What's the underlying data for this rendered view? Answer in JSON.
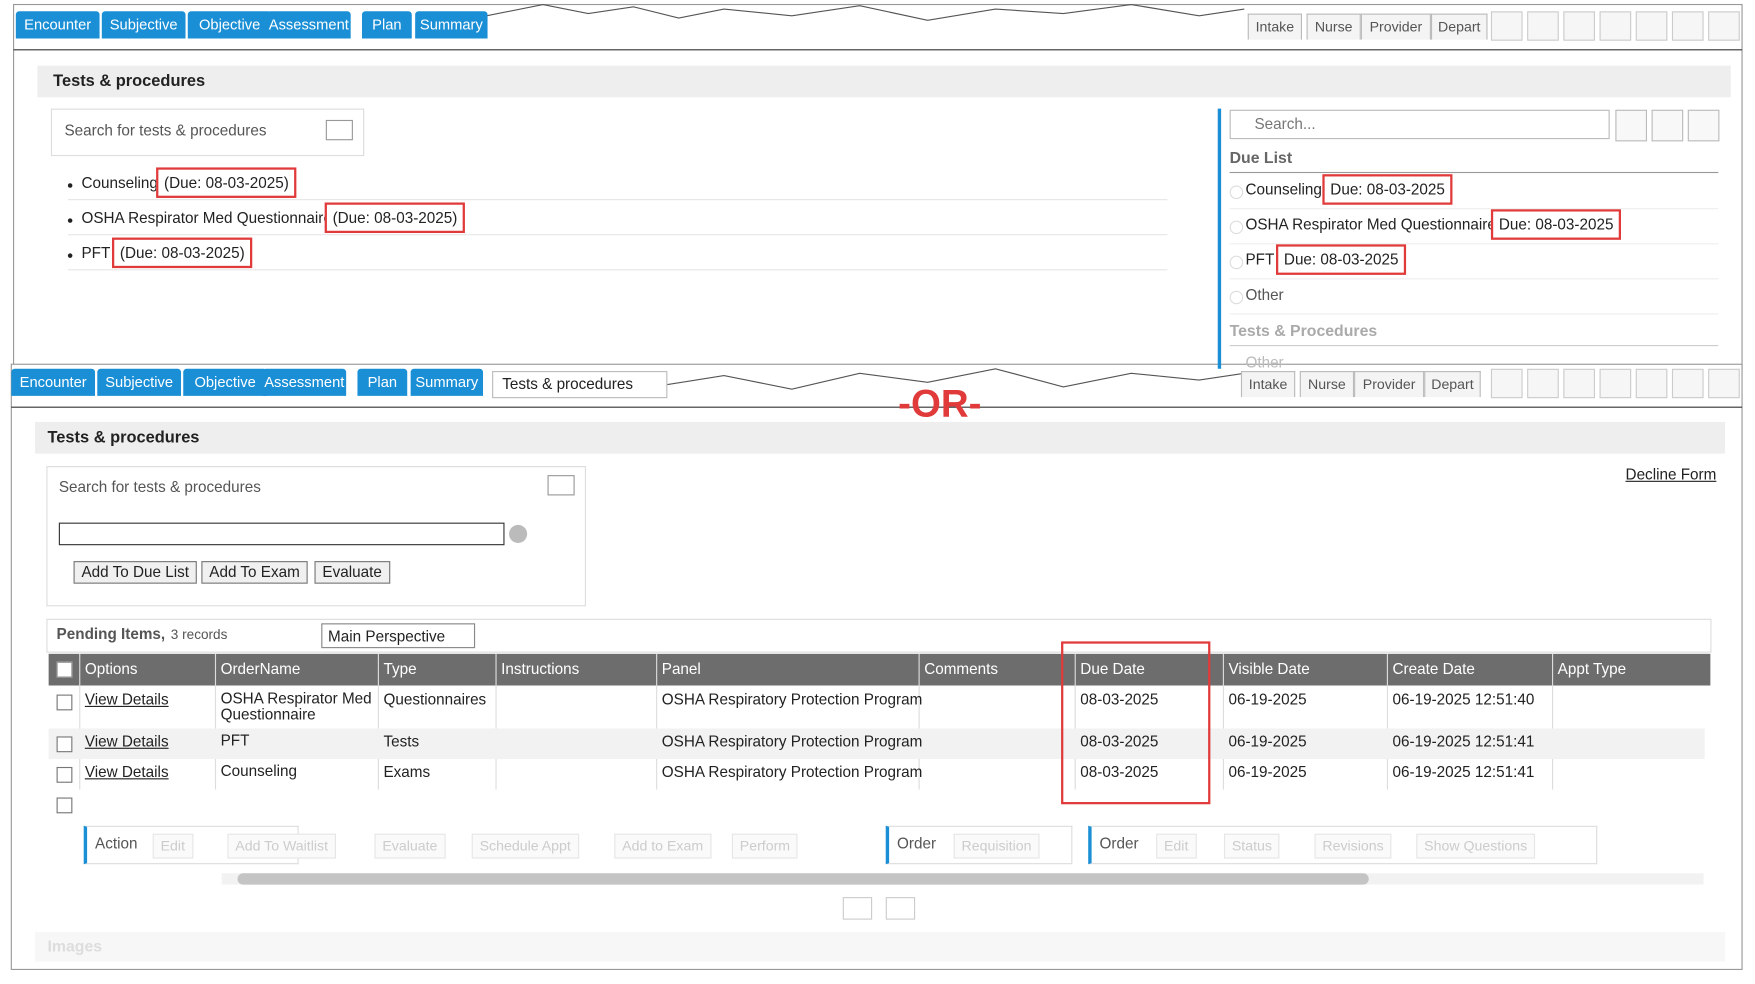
{
  "top": {
    "tabs": [
      "Encounter",
      "Subjective",
      "Objective",
      "Assessment",
      "Plan",
      "Summary"
    ],
    "right_tabs": [
      "Intake",
      "Nurse",
      "Provider",
      "Depart"
    ],
    "panel_title": "Tests & procedures",
    "search_label": "Search for tests & procedures",
    "items": [
      {
        "name": "Counseling",
        "due": "(Due: 08-03-2025)"
      },
      {
        "name": "OSHA Respirator Med Questionnaire",
        "due": "(Due: 08-03-2025)"
      },
      {
        "name": "PFT",
        "due": "(Due: 08-03-2025)"
      }
    ],
    "side_search": "Search...",
    "due_list_title": "Due List",
    "due_list": [
      {
        "name": "Counseling",
        "due": "Due: 08-03-2025"
      },
      {
        "name": "OSHA Respirator Med Questionnaire",
        "due": "Due: 08-03-2025"
      },
      {
        "name": "PFT",
        "due": "Due: 08-03-2025"
      },
      {
        "name": "Other"
      }
    ],
    "section_title": "Tests & Procedures",
    "section_items": [
      "Other"
    ]
  },
  "separator": "-OR-",
  "bottom": {
    "tabs": [
      "Encounter",
      "Subjective",
      "Objective",
      "Assessment",
      "Plan",
      "Summary"
    ],
    "open_tab": "Tests & procedures",
    "right_tabs": [
      "Intake",
      "Nurse",
      "Provider",
      "Depart"
    ],
    "panel_title": "Tests & procedures",
    "decline": "Decline Form",
    "search_label": "Search for tests & procedures",
    "buttons": [
      "Add To Due List",
      "Add To Exam",
      "Evaluate"
    ],
    "pending_label": "Pending Items,",
    "records": "3 records",
    "perspective": "Main Perspective",
    "columns": [
      "Options",
      "OrderName",
      "Type",
      "Instructions",
      "Panel",
      "Comments",
      "Due Date",
      "Visible Date",
      "Create Date",
      "Appt Type"
    ],
    "rows": [
      {
        "options": "View Details",
        "order_name": "OSHA Respirator Med Questionnaire",
        "type": "Questionnaires",
        "panel": "OSHA Respiratory Protection Program",
        "due_date": "08-03-2025",
        "visible_date": "06-19-2025",
        "create_date": "06-19-2025 12:51:40"
      },
      {
        "options": "View Details",
        "order_name": "PFT",
        "type": "Tests",
        "panel": "OSHA Respiratory Protection Program",
        "due_date": "08-03-2025",
        "visible_date": "06-19-2025",
        "create_date": "06-19-2025 12:51:41"
      },
      {
        "options": "View Details",
        "order_name": "Counseling",
        "type": "Exams",
        "panel": "OSHA Respiratory Protection Program",
        "due_date": "08-03-2025",
        "visible_date": "06-19-2025",
        "create_date": "06-19-2025 12:51:41"
      }
    ],
    "action_groups": [
      {
        "label": "Action",
        "buttons": [
          "Edit",
          "Add To Waitlist",
          "Evaluate",
          "Schedule Appt",
          "Add to Exam",
          "Perform"
        ]
      },
      {
        "label": "Order",
        "buttons": [
          "Requisition"
        ]
      },
      {
        "label": "Order",
        "buttons": [
          "Edit",
          "Status",
          "Revisions",
          "Show Questions"
        ]
      }
    ],
    "next_section": "Images"
  }
}
